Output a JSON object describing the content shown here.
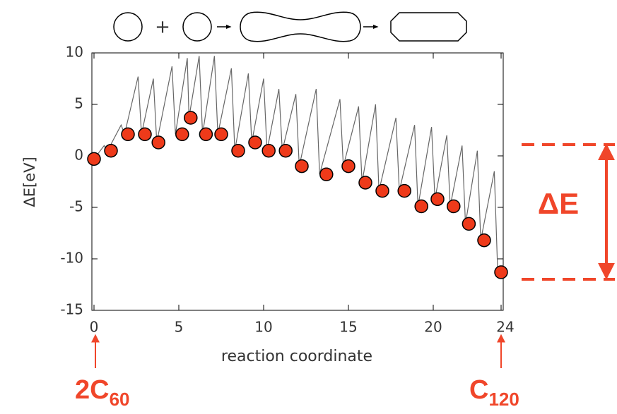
{
  "chart_data": {
    "type": "line",
    "xlabel": "reaction coordinate",
    "ylabel": "ΔE[eV]",
    "xlim": [
      0,
      24
    ],
    "ylim": [
      -15,
      10
    ],
    "xticks": [
      0,
      5,
      10,
      15,
      20,
      24
    ],
    "yticks": [
      10,
      5,
      0,
      -5,
      -10,
      -15
    ],
    "grid": false,
    "schematic_operator": "+",
    "annotations": [
      {
        "text": "ΔE"
      },
      {
        "text": "2C",
        "subscript": "60"
      },
      {
        "text": "C",
        "subscript": "120"
      }
    ],
    "series": [
      {
        "type": "line",
        "color": "#666666",
        "x": [
          0,
          0.6,
          0.8,
          1.6,
          1.8,
          2.6,
          2.8,
          3.5,
          3.7,
          4.6,
          4.8,
          5.5,
          5.6,
          6.2,
          6.4,
          7.1,
          7.3,
          8.1,
          8.3,
          9.1,
          9.3,
          10.0,
          10.2,
          10.9,
          11.1,
          11.9,
          12.1,
          13.1,
          13.3,
          14.5,
          14.7,
          15.6,
          15.8,
          16.6,
          16.8,
          17.8,
          18.0,
          18.9,
          19.1,
          19.9,
          20.1,
          20.8,
          21.0,
          21.7,
          21.9,
          22.6,
          22.8,
          23.6,
          23.8,
          24
        ],
        "values": [
          -0.3,
          1.0,
          0.5,
          3.0,
          2.1,
          7.7,
          2.1,
          7.5,
          1.3,
          8.7,
          2.1,
          9.5,
          3.7,
          9.7,
          2.1,
          9.7,
          2.1,
          8.5,
          0.5,
          8.0,
          1.3,
          7.5,
          0.5,
          6.5,
          0.5,
          6.0,
          -1.0,
          6.5,
          -1.8,
          5.5,
          -1.0,
          4.8,
          -2.6,
          5.0,
          -3.4,
          3.7,
          -3.4,
          3.0,
          -4.9,
          2.8,
          -4.2,
          2.0,
          -4.9,
          1.0,
          -6.6,
          0.5,
          -8.2,
          -1.5,
          -11.3,
          -11.3
        ]
      },
      {
        "type": "scatter",
        "color": "#ee3a1a",
        "x": [
          0,
          1,
          2,
          3,
          3.8,
          5.2,
          5.7,
          6.6,
          7.5,
          8.5,
          9.5,
          10.3,
          11.3,
          12.25,
          13.7,
          15,
          16,
          17,
          18.3,
          19.3,
          20.25,
          21.2,
          22.1,
          23,
          24
        ],
        "values": [
          -0.3,
          0.5,
          2.1,
          2.1,
          1.3,
          2.1,
          3.7,
          2.1,
          2.1,
          0.5,
          1.3,
          0.5,
          0.5,
          -1.0,
          -1.8,
          -1.0,
          -2.6,
          -3.4,
          -3.4,
          -4.9,
          -4.2,
          -4.9,
          -6.6,
          -8.2,
          -11.3
        ]
      }
    ]
  }
}
